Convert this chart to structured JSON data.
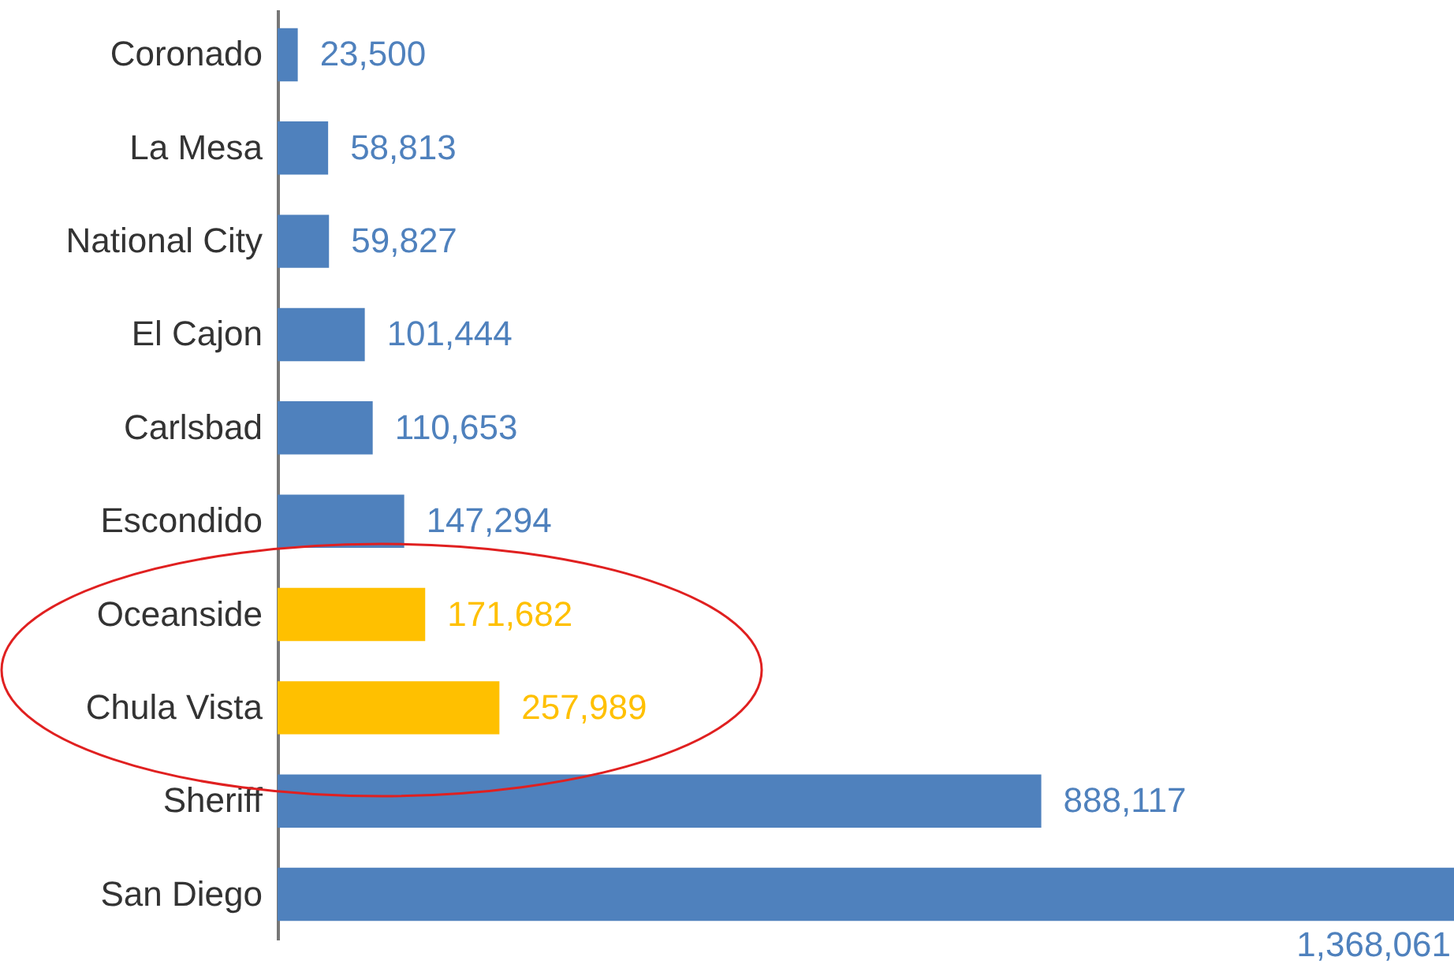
{
  "chart_data": {
    "type": "bar",
    "orientation": "horizontal",
    "categories": [
      "Coronado",
      "La Mesa",
      "National City",
      "El Cajon",
      "Carlsbad",
      "Escondido",
      "Oceanside",
      "Chula Vista",
      "Sheriff",
      "San Diego"
    ],
    "values": [
      23500,
      58813,
      59827,
      101444,
      110653,
      147294,
      171682,
      257989,
      888117,
      1368061
    ],
    "value_labels": [
      "23,500",
      "58,813",
      "59,827",
      "101,444",
      "110,653",
      "147,294",
      "171,682",
      "257,989",
      "888,117",
      "1,368,061"
    ],
    "colors": [
      "#4f81bd",
      "#4f81bd",
      "#4f81bd",
      "#4f81bd",
      "#4f81bd",
      "#4f81bd",
      "#ffc000",
      "#ffc000",
      "#4f81bd",
      "#4f81bd"
    ]
  }
}
